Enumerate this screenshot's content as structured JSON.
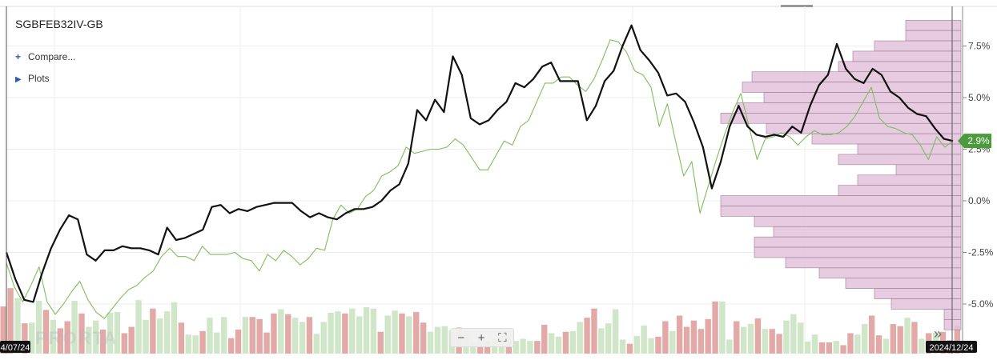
{
  "header": {
    "symbol": "SGBFEB32IV-GB",
    "compare_label": "Compare...",
    "compare_icon": "plus-icon",
    "plots_label": "Plots",
    "plots_icon": "triangle-right-icon"
  },
  "footer": {
    "start_date": "4/07/24",
    "end_date": "2024/12/24",
    "watermark": "PRORTA"
  },
  "controls": {
    "zoom_out_icon": "minus-icon",
    "zoom_in_icon": "plus-icon",
    "fit_icon": "fit-screen-icon",
    "scroll_end_icon": "double-chevron-right-icon"
  },
  "colors": {
    "price_line": "#111111",
    "benchmark_line": "#7dbf5a",
    "volume_up": "#cfe6c8",
    "volume_down": "#e2a9a7",
    "volume_profile": "#e3c3dc",
    "last_value_badge": "#4a9b3c"
  },
  "chart_data": {
    "type": "line",
    "y_axis": {
      "ticks": [
        7.5,
        5.0,
        2.5,
        0.0,
        -2.5,
        -5.0
      ],
      "tick_labels": [
        "7.5%",
        "5.0%",
        "2.5%",
        "0.0%",
        "-2.5%",
        "-5.0%"
      ],
      "range": [
        -6.5,
        8.8
      ],
      "unit": "%",
      "position": "right"
    },
    "grid": true,
    "last_value_label": "2.9%",
    "series": [
      {
        "values": [
          -2.5,
          -3.8,
          -4.8,
          -4.9,
          -3.5,
          -2.3,
          -1.4,
          -0.7,
          -0.9,
          -2.6,
          -2.9,
          -2.4,
          -2.4,
          -2.2,
          -2.3,
          -2.3,
          -2.4,
          -2.6,
          -1.3,
          -1.9,
          -1.8,
          -1.6,
          -1.4,
          -0.3,
          -0.2,
          -0.6,
          -0.4,
          -0.5,
          -0.3,
          -0.2,
          -0.1,
          -0.1,
          -0.1,
          -0.5,
          -0.8,
          -0.6,
          -0.8,
          -0.9,
          -0.6,
          -0.4,
          -0.4,
          -0.3,
          0.0,
          0.5,
          0.8,
          1.8,
          4.4,
          3.9,
          4.9,
          4.3,
          7.0,
          6.1,
          4.0,
          3.7,
          3.9,
          4.4,
          4.8,
          5.7,
          5.5,
          5.9,
          6.5,
          6.7,
          5.8,
          5.8,
          5.8,
          3.9,
          4.6,
          5.8,
          6.3,
          7.5,
          8.5,
          7.3,
          6.8,
          6.2,
          5.1,
          5.2,
          4.8,
          3.8,
          2.6,
          0.6,
          1.9,
          3.6,
          4.6,
          3.6,
          3.2,
          3.1,
          3.2,
          3.1,
          3.6,
          3.3,
          4.6,
          5.6,
          6.1,
          7.6,
          6.4,
          5.9,
          5.7,
          6.4,
          6.1,
          5.3,
          5.0,
          4.5,
          4.2,
          4.1,
          3.5,
          3.0,
          2.9
        ],
        "color": "#111111"
      },
      {
        "values": [
          -3.0,
          -4.2,
          -4.9,
          -4.1,
          -3.2,
          -4.9,
          -5.5,
          -5.0,
          -4.4,
          -3.9,
          -4.8,
          -5.4,
          -5.7,
          -5.2,
          -4.7,
          -4.3,
          -4.1,
          -3.7,
          -3.4,
          -2.7,
          -2.3,
          -2.7,
          -2.7,
          -2.9,
          -2.2,
          -2.6,
          -2.6,
          -2.6,
          -2.5,
          -2.8,
          -2.9,
          -3.4,
          -2.6,
          -2.9,
          -2.4,
          -2.7,
          -3.1,
          -2.8,
          -2.3,
          -2.4,
          -0.9,
          -0.2,
          -0.6,
          -0.4,
          0.2,
          0.5,
          1.2,
          1.4,
          1.7,
          2.6,
          2.3,
          2.4,
          2.5,
          2.5,
          2.6,
          3.0,
          2.7,
          2.1,
          1.5,
          1.5,
          2.2,
          2.9,
          2.7,
          3.6,
          3.9,
          4.8,
          5.7,
          5.7,
          6.0,
          6.0,
          5.6,
          5.3,
          5.9,
          6.8,
          7.8,
          7.7,
          7.2,
          6.3,
          6.1,
          5.5,
          3.6,
          4.7,
          2.9,
          1.2,
          1.9,
          -0.6,
          0.7,
          2.0,
          3.2,
          4.3,
          5.2,
          3.6,
          2.0,
          3.0,
          3.1,
          3.3,
          3.1,
          2.7,
          3.1,
          3.4,
          3.2,
          3.2,
          3.3,
          3.6,
          4.1,
          4.8,
          5.5,
          4.0,
          3.6,
          3.5,
          3.3,
          3.2,
          2.7,
          2.0,
          3.1,
          2.6,
          2.9
        ],
        "color": "#7dbf5a"
      }
    ],
    "volume": {
      "relative_heights": [
        0.67,
        0.93,
        0.79,
        0.43,
        0.44,
        0.75,
        0.62,
        0.48,
        0.36,
        0.46,
        0.75,
        0.57,
        0.38,
        0.47,
        0.34,
        0.58,
        0.59,
        0.29,
        0.38,
        0.76,
        0.48,
        0.64,
        0.5,
        0.6,
        0.73,
        0.44,
        0.27,
        0.26,
        0.32,
        0.51,
        0.3,
        0.52,
        0.22,
        0.34,
        0.52,
        0.52,
        0.49,
        0.3,
        0.57,
        0.63,
        0.56,
        0.51,
        0.45,
        0.52,
        0.28,
        0.45,
        0.58,
        0.6,
        0.57,
        0.64,
        0.53,
        0.66,
        0.64,
        0.31,
        0.54,
        0.61,
        0.57,
        0.53,
        0.59,
        0.44,
        0.31,
        0.38,
        0.39,
        0.33,
        0.37,
        0.3,
        0.16,
        0.23,
        0.18,
        0.21,
        0.26,
        0.22,
        0.18,
        0.21,
        0.18,
        0.18,
        0.41,
        0.29,
        0.24,
        0.31,
        0.32,
        0.45,
        0.51,
        0.64,
        0.36,
        0.43,
        0.63,
        0.2,
        0.14,
        0.25,
        0.4,
        0.22,
        0.24,
        0.46,
        0.32,
        0.54,
        0.38,
        0.47,
        0.35,
        0.49,
        0.74,
        0.74,
        0.2,
        0.46,
        0.38,
        0.42,
        0.5,
        0.35,
        0.35,
        0.28,
        0.47,
        0.56,
        0.44,
        0.17,
        0.27,
        0.16,
        0.16,
        0.18,
        0.12,
        0.29,
        0.27,
        0.42,
        0.54,
        0.26,
        0.21,
        0.42,
        0.39,
        0.51,
        0.45,
        0.21,
        0.29,
        0.3,
        0.31,
        0.19,
        0.4
      ],
      "up_flags": [
        0,
        0,
        1,
        0,
        1,
        1,
        0,
        1,
        0,
        0,
        1,
        0,
        1,
        1,
        0,
        1,
        1,
        0,
        0,
        1,
        1,
        0,
        1,
        1,
        1,
        0,
        1,
        1,
        0,
        1,
        1,
        1,
        0,
        0,
        1,
        0,
        0,
        0,
        0,
        1,
        0,
        1,
        1,
        0,
        1,
        1,
        1,
        1,
        0,
        1,
        1,
        1,
        1,
        0,
        1,
        1,
        0,
        1,
        0,
        0,
        1,
        1,
        1,
        1,
        0,
        1,
        1,
        0,
        0,
        1,
        1,
        0,
        1,
        1,
        1,
        0,
        0,
        1,
        1,
        0,
        1,
        1,
        0,
        0,
        1,
        1,
        1,
        1,
        0,
        1,
        1,
        1,
        0,
        0,
        1,
        0,
        0,
        0,
        0,
        0,
        0,
        1,
        1,
        0,
        1,
        1,
        0,
        1,
        0,
        0,
        1,
        1,
        1,
        1,
        1,
        0,
        0,
        1,
        0,
        0,
        1,
        1,
        0,
        0,
        1,
        0,
        0,
        1,
        0,
        1,
        0,
        1,
        0,
        0,
        0
      ]
    },
    "volume_profile": {
      "price_bins": [
        8.5,
        8.0,
        7.5,
        7.0,
        6.5,
        6.0,
        5.5,
        5.0,
        4.5,
        4.0,
        3.5,
        3.0,
        2.5,
        2.0,
        1.5,
        1.0,
        0.5,
        0.0,
        -0.5,
        -1.0,
        -1.5,
        -2.0,
        -2.5,
        -3.0,
        -3.5,
        -4.0,
        -4.5,
        -5.0,
        -5.5,
        -6.0
      ],
      "relative_widths": [
        0.23,
        0.23,
        0.36,
        0.45,
        0.51,
        0.87,
        0.91,
        0.82,
        0.93,
        1.0,
        0.81,
        0.62,
        0.43,
        0.51,
        0.27,
        0.43,
        0.51,
        1.0,
        1.0,
        0.86,
        0.78,
        0.86,
        0.86,
        0.73,
        0.59,
        0.48,
        0.36,
        0.29,
        0.07,
        0.07
      ]
    }
  }
}
